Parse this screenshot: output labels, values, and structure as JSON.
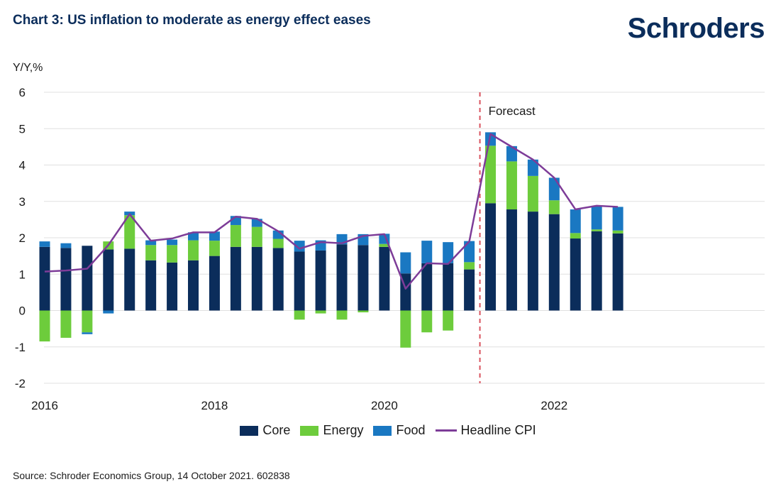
{
  "header": {
    "title": "Chart 3: US inflation to moderate as energy effect eases",
    "brand": "Schroders",
    "source": "Source: Schroder Economics Group, 14 October 2021. 602838"
  },
  "colors": {
    "core": "#0b2d5b",
    "energy": "#6dcc3c",
    "food": "#1a78c2",
    "headline": "#7d3c98",
    "forecast_line": "#d9535f",
    "grid": "#e0e0e0"
  },
  "chart_data": {
    "type": "bar",
    "stacked": true,
    "ylabel": "Y/Y,%",
    "ylim": [
      -2,
      6
    ],
    "yticks": [
      -2,
      -1,
      0,
      1,
      2,
      3,
      4,
      5,
      6
    ],
    "xticks": [
      "2016",
      "2018",
      "2020",
      "2022"
    ],
    "grid": "horizontal",
    "legend": "bottom",
    "annotation": "Forecast",
    "categories": [
      "2016Q1",
      "2016Q2",
      "2016Q3",
      "2016Q4",
      "2017Q1",
      "2017Q2",
      "2017Q3",
      "2017Q4",
      "2018Q1",
      "2018Q2",
      "2018Q3",
      "2018Q4",
      "2019Q1",
      "2019Q2",
      "2019Q3",
      "2019Q4",
      "2020Q1",
      "2020Q2",
      "2020Q3",
      "2020Q4",
      "2021Q1",
      "2021Q2",
      "2021Q3",
      "2021Q4",
      "2022Q1",
      "2022Q2",
      "2022Q3",
      "2022Q4"
    ],
    "series": [
      {
        "name": "Core",
        "values": [
          1.75,
          1.72,
          1.78,
          1.68,
          1.7,
          1.38,
          1.32,
          1.38,
          1.5,
          1.75,
          1.75,
          1.72,
          1.62,
          1.65,
          1.82,
          1.8,
          1.75,
          1.02,
          1.3,
          1.3,
          1.13,
          2.95,
          2.78,
          2.72,
          2.65,
          1.98,
          2.18,
          2.12
        ]
      },
      {
        "name": "Energy",
        "values": [
          -0.85,
          -0.75,
          -0.6,
          0.22,
          0.92,
          0.42,
          0.48,
          0.55,
          0.42,
          0.6,
          0.55,
          0.25,
          -0.25,
          -0.08,
          -0.25,
          -0.05,
          0.08,
          -1.02,
          -0.6,
          -0.55,
          0.2,
          1.58,
          1.32,
          0.98,
          0.38,
          0.15,
          0.05,
          0.08
        ]
      },
      {
        "name": "Food",
        "values": [
          0.15,
          0.13,
          -0.05,
          -0.08,
          0.1,
          0.13,
          0.15,
          0.22,
          0.25,
          0.25,
          0.22,
          0.23,
          0.3,
          0.28,
          0.28,
          0.3,
          0.28,
          0.58,
          0.62,
          0.58,
          0.58,
          0.37,
          0.42,
          0.45,
          0.62,
          0.65,
          0.63,
          0.65
        ]
      }
    ],
    "line": {
      "name": "Headline CPI",
      "values": [
        1.07,
        1.1,
        1.15,
        1.8,
        2.65,
        1.92,
        1.98,
        2.15,
        2.15,
        2.58,
        2.52,
        2.18,
        1.7,
        1.88,
        1.85,
        2.05,
        2.1,
        0.6,
        1.3,
        1.28,
        1.9,
        4.85,
        4.5,
        4.15,
        3.65,
        2.78,
        2.88,
        2.85
      ]
    },
    "forecast_after_index": 20
  }
}
